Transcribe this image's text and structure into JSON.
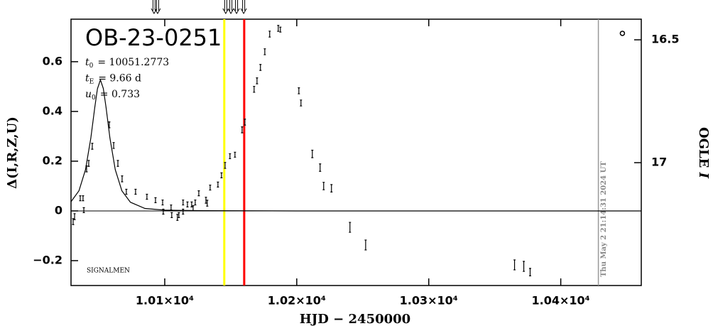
{
  "chart_data": {
    "type": "scatter",
    "title": "OB-23-0251",
    "parameters": [
      {
        "symbol": "t",
        "sub": "0",
        "text": "= 10051.2773"
      },
      {
        "symbol": "t",
        "sub": "E",
        "text": "= 9.66 d"
      },
      {
        "symbol": "u",
        "sub": "0",
        "text": "= 0.733"
      }
    ],
    "corner_label": "SIGNALMEN",
    "timestamp": "Thu May  2 21:14:31 2024 UT",
    "x_label": "HJD − 2450000",
    "y_label": "Δ(I,R,Z,U)",
    "y2_label": {
      "text": "OGLE ",
      "italic": "I"
    },
    "xlim": [
      10029,
      10461
    ],
    "xticks": [
      {
        "value": 10100,
        "label": "1.01×10⁴"
      },
      {
        "value": 10200,
        "label": "1.02×10⁴"
      },
      {
        "value": 10300,
        "label": "1.03×10⁴"
      },
      {
        "value": 10400,
        "label": "1.04×10⁴"
      }
    ],
    "ylim": [
      -0.3,
      0.771
    ],
    "yticks": [
      {
        "value": -0.2,
        "label": "−0.2"
      },
      0,
      0.2,
      0.4,
      0.6
    ],
    "y2lim": [
      17.5,
      16.416
    ],
    "y2ticks": [
      16.5,
      17
    ],
    "baseline": 0,
    "series": [
      {
        "marker": "errorbar",
        "color": "#000000",
        "x": [
          10030.6,
          10031.7,
          10036.0,
          10038.1,
          10038.7,
          10040.8,
          10042.4,
          10045.1,
          10058.0,
          10061.3,
          10064.5,
          10067.7,
          10070.9,
          10077.9,
          10086.5,
          10093.0,
          10098.4,
          10098.9,
          10104.8,
          10105.3,
          10109.6,
          10110.7,
          10113.9,
          10113.9,
          10117.2,
          10120.4,
          10121.5,
          10123.1,
          10125.8,
          10131.2,
          10132.2,
          10134.4,
          10140.3,
          10143.0,
          10145.7,
          10149.4,
          10153.2,
          10158.6,
          10160.7,
          10167.7,
          10169.9,
          10172.5,
          10175.8,
          10179.5,
          10186.0,
          10187.6,
          10201.6,
          10203.2,
          10211.8,
          10217.7,
          10220.4,
          10226.3,
          10240.3,
          10252.2,
          10365.0,
          10372.0,
          10376.8
        ],
        "values": [
          -0.043,
          -0.023,
          0.051,
          0.051,
          0.003,
          0.169,
          0.191,
          0.26,
          0.346,
          0.263,
          0.191,
          0.129,
          0.077,
          0.077,
          0.057,
          0.043,
          0.034,
          -0.003,
          0.014,
          -0.017,
          -0.026,
          -0.017,
          -0.003,
          0.034,
          0.026,
          0.026,
          0.011,
          0.034,
          0.071,
          0.043,
          0.031,
          0.094,
          0.106,
          0.143,
          0.183,
          0.22,
          0.226,
          0.326,
          0.357,
          0.489,
          0.523,
          0.577,
          0.64,
          0.711,
          0.734,
          0.729,
          0.483,
          0.434,
          0.229,
          0.174,
          0.1,
          0.091,
          -0.066,
          -0.137,
          -0.217,
          -0.223,
          -0.246
        ],
        "errors": [
          0.012,
          0.012,
          0.01,
          0.01,
          0.01,
          0.012,
          0.012,
          0.012,
          0.012,
          0.012,
          0.012,
          0.012,
          0.01,
          0.01,
          0.01,
          0.01,
          0.01,
          0.01,
          0.01,
          0.01,
          0.012,
          0.01,
          0.01,
          0.01,
          0.01,
          0.01,
          0.01,
          0.01,
          0.01,
          0.012,
          0.012,
          0.01,
          0.01,
          0.01,
          0.012,
          0.01,
          0.01,
          0.012,
          0.012,
          0.012,
          0.012,
          0.012,
          0.012,
          0.012,
          0.012,
          0.01,
          0.012,
          0.012,
          0.015,
          0.015,
          0.015,
          0.015,
          0.02,
          0.02,
          0.02,
          0.02,
          0.015
        ]
      },
      {
        "marker": "circle",
        "color": "#000000",
        "x": [
          10446.7
        ],
        "values": [
          0.714
        ]
      }
    ],
    "model": {
      "color": "#000000",
      "x": [
        10029,
        10035,
        10040,
        10044,
        10047,
        10049,
        10051.28,
        10053.5,
        10055.5,
        10058.5,
        10062.5,
        10067.5,
        10074,
        10085,
        10100,
        10130,
        10200,
        10461
      ],
      "values": [
        0.037,
        0.081,
        0.166,
        0.293,
        0.417,
        0.491,
        0.527,
        0.492,
        0.417,
        0.293,
        0.166,
        0.081,
        0.035,
        0.01,
        0.003,
        0.001,
        0,
        0
      ]
    },
    "vlines": [
      {
        "x": 10145.1,
        "color": "#ffff00"
      },
      {
        "x": 10160.2,
        "color": "#ff0000"
      },
      {
        "x": 10428.5,
        "color": "#999999"
      }
    ],
    "arrows_x": [
      10091.9,
      10094.6,
      10146.2,
      10150.1,
      10154.4,
      10159.8
    ]
  }
}
